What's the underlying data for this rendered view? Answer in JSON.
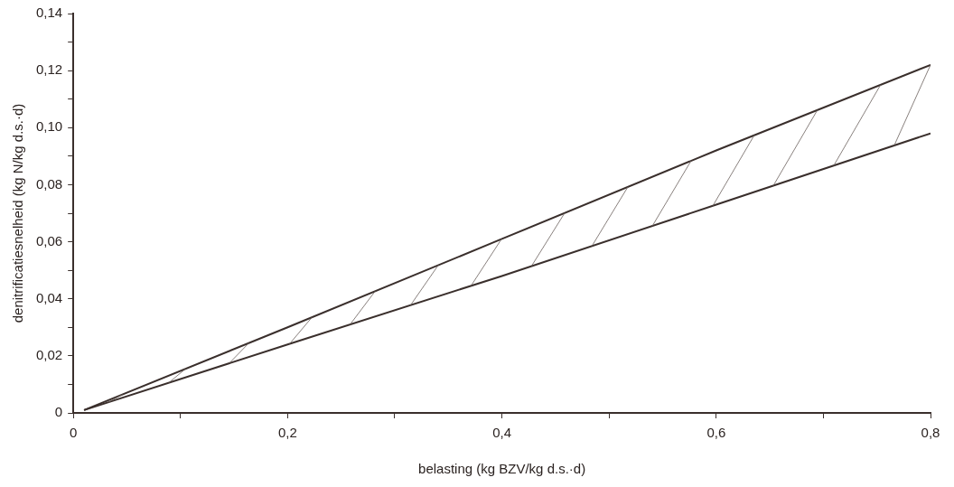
{
  "chart_data": {
    "type": "line",
    "xlabel": "belasting (kg BZV/kg d.s.·d)",
    "ylabel": "denitrificatiesnelheid (kg N/kg d.s.·d)",
    "series": [
      {
        "color": "#3a2f2c",
        "x": [
          0.01,
          0.2,
          0.4,
          0.6,
          0.8
        ],
        "values": [
          0.001,
          0.03,
          0.061,
          0.092,
          0.122
        ]
      },
      {
        "color": "#3a2f2c",
        "x": [
          0.01,
          0.2,
          0.4,
          0.6,
          0.8
        ],
        "values": [
          0.001,
          0.024,
          0.048,
          0.073,
          0.098
        ]
      }
    ],
    "xlim": [
      0,
      0.8
    ],
    "ylim": [
      0,
      0.14
    ],
    "xticks": [
      0,
      {
        "value": 0.1,
        "label": null
      },
      {
        "value": 0.2,
        "label": "0,2"
      },
      {
        "value": 0.3,
        "label": null
      },
      {
        "value": 0.4,
        "label": "0,4"
      },
      {
        "value": 0.5,
        "label": null
      },
      {
        "value": 0.6,
        "label": "0,6"
      },
      {
        "value": 0.7,
        "label": null
      },
      {
        "value": 0.8,
        "label": "0,8"
      }
    ],
    "yticks": [
      0,
      {
        "value": 0.01,
        "label": null
      },
      {
        "value": 0.02,
        "label": "0,02"
      },
      {
        "value": 0.03,
        "label": null
      },
      {
        "value": 0.04,
        "label": "0,04"
      },
      {
        "value": 0.05,
        "label": null
      },
      {
        "value": 0.06,
        "label": "0,06"
      },
      {
        "value": 0.07,
        "label": null
      },
      {
        "value": 0.08,
        "label": "0,08"
      },
      {
        "value": 0.09,
        "label": null
      },
      {
        "value": 0.1,
        "label": "0,10"
      },
      {
        "value": 0.11,
        "label": null
      },
      {
        "value": 0.12,
        "label": "0,12"
      },
      {
        "value": 0.13,
        "label": null
      },
      {
        "value": 0.14,
        "label": "0,14"
      }
    ],
    "marker": "none",
    "line_style": "solid",
    "grid": false,
    "legend": false
  }
}
